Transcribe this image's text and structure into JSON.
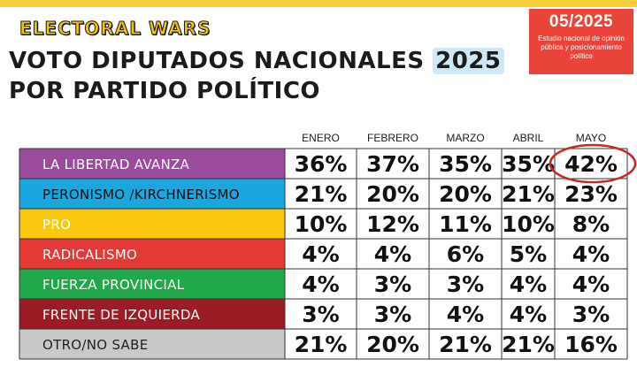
{
  "brand": "ELECTORAL WARS",
  "title_line1": "VOTO DIPUTADOS NACIONALES",
  "title_year": "2025",
  "title_line2": "POR PARTIDO POLÍTICO",
  "badge": {
    "date": "05/2025",
    "description": "Estudio nacional de opinión pública y posicionamiento político"
  },
  "chart_data": {
    "type": "table",
    "categories": [
      "ENERO",
      "FEBRERO",
      "MARZO",
      "ABRIL",
      "MAYO"
    ],
    "series": [
      {
        "name": "LA LIBERTAD AVANZA",
        "color": "#9b4b9b",
        "text_color": "#ffffff",
        "values": [
          36,
          37,
          35,
          35,
          42
        ],
        "labels": [
          "36%",
          "37%",
          "35%",
          "35%",
          "42%"
        ]
      },
      {
        "name": "PERONISMO /KIRCHNERISMO",
        "color": "#1aa6df",
        "text_color": "#111111",
        "values": [
          21,
          20,
          20,
          21,
          23
        ],
        "labels": [
          "21%",
          "20%",
          "20%",
          "21%",
          "23%"
        ]
      },
      {
        "name": "PRO",
        "color": "#f9c80e",
        "text_color": "#ffffff",
        "values": [
          10,
          12,
          11,
          10,
          8
        ],
        "labels": [
          "10%",
          "12%",
          "11%",
          "10%",
          "8%"
        ]
      },
      {
        "name": "RADICALISMO",
        "color": "#e53935",
        "text_color": "#ffffff",
        "values": [
          4,
          4,
          6,
          5,
          4
        ],
        "labels": [
          "4%",
          "4%",
          "6%",
          "5%",
          "4%"
        ]
      },
      {
        "name": "FUERZA PROVINCIAL",
        "color": "#21a84a",
        "text_color": "#ffffff",
        "values": [
          4,
          3,
          3,
          4,
          4
        ],
        "labels": [
          "4%",
          "3%",
          "3%",
          "4%",
          "4%"
        ]
      },
      {
        "name": "FRENTE DE IZQUIERDA",
        "color": "#9b1c24",
        "text_color": "#ffffff",
        "values": [
          3,
          3,
          4,
          4,
          3
        ],
        "labels": [
          "3%",
          "3%",
          "4%",
          "4%",
          "3%"
        ]
      },
      {
        "name": "OTRO/NO SABE",
        "color": "#c9c9c9",
        "text_color": "#222222",
        "values": [
          21,
          20,
          21,
          21,
          16
        ],
        "labels": [
          "21%",
          "20%",
          "21%",
          "21%",
          "16%"
        ]
      }
    ],
    "highlight": {
      "row": 0,
      "column": 4,
      "color": "#c62828"
    }
  }
}
